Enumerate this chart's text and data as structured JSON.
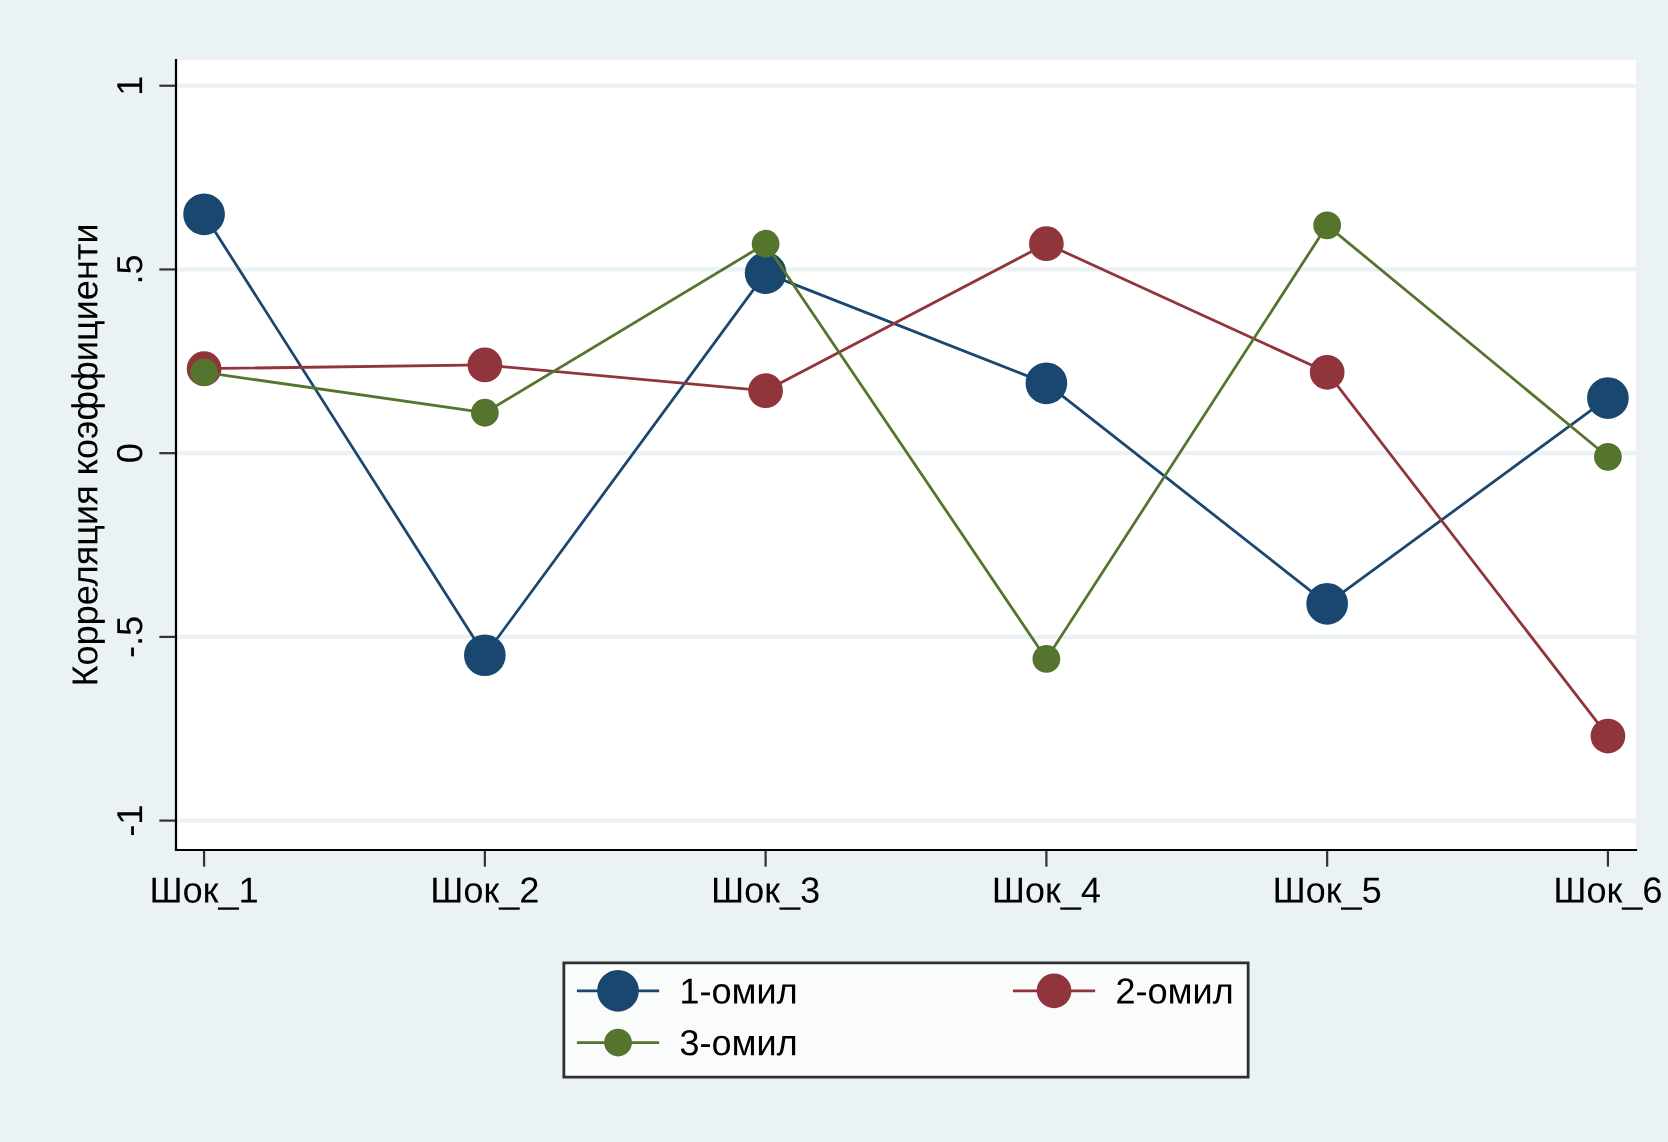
{
  "chart_data": {
    "type": "line",
    "ylabel": "Корреляция коэффициенти",
    "categories": [
      "Шок_1",
      "Шок_2",
      "Шок_3",
      "Шок_4",
      "Шок_5",
      "Шок_6"
    ],
    "series": [
      {
        "name": "1-омил",
        "color": "#1a476f",
        "values": [
          0.65,
          -0.55,
          0.49,
          0.19,
          -0.41,
          0.15
        ]
      },
      {
        "name": "2-омил",
        "color": "#90353b",
        "values": [
          0.23,
          0.24,
          0.17,
          0.57,
          0.22,
          -0.77
        ]
      },
      {
        "name": "3-омил",
        "color": "#55752f",
        "values": [
          0.22,
          0.11,
          0.57,
          -0.56,
          0.62,
          -0.01
        ]
      }
    ],
    "ylim": [
      -1.08,
      1.07
    ],
    "yticks": [
      {
        "value": -1,
        "label": "-1"
      },
      {
        "value": -0.5,
        "label": "-.5"
      },
      {
        "value": 0,
        "label": "0"
      },
      {
        "value": 0.5,
        "label": ".5"
      },
      {
        "value": 1,
        "label": "1"
      }
    ],
    "grid": "y",
    "legend": "bottom",
    "marker": "circle",
    "line_style": "solid"
  }
}
